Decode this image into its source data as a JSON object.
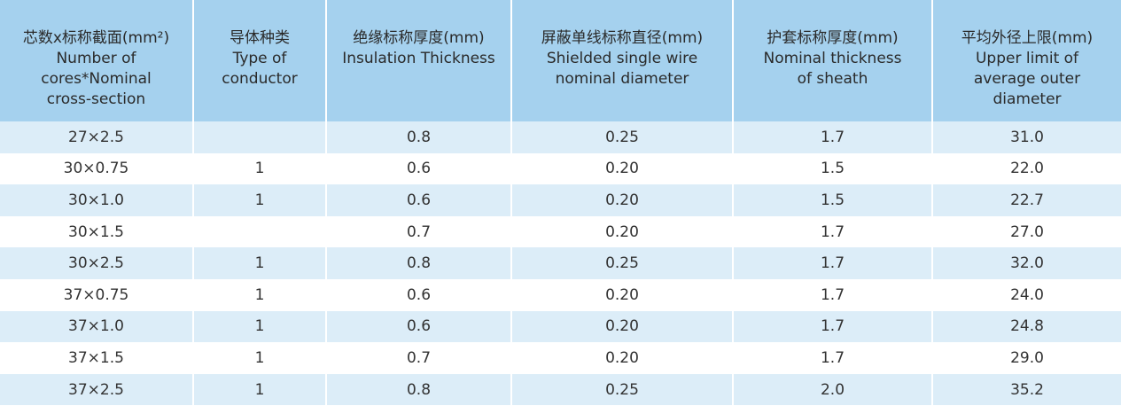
{
  "table": {
    "header": [
      [
        "芯数x标称截面(mm²)",
        "Number of",
        "cores*Nominal",
        "cross-section"
      ],
      [
        "导体种类",
        "Type of",
        "conductor"
      ],
      [
        "绝缘标称厚度(mm)",
        "Insulation Thickness"
      ],
      [
        "屏蔽单线标称直径(mm)",
        "Shielded single wire",
        "nominal diameter"
      ],
      [
        "护套标称厚度(mm)",
        "Nominal thickness",
        "of sheath"
      ],
      [
        "平均外径上限(mm)",
        "Upper limit of",
        "average outer",
        "diameter"
      ]
    ],
    "rows": [
      [
        "27×2.5",
        null,
        "0.8",
        "0.25",
        "1.7",
        "31.0"
      ],
      [
        "30×0.75",
        "1",
        "0.6",
        "0.20",
        "1.5",
        "22.0"
      ],
      [
        "30×1.0",
        "1",
        "0.6",
        "0.20",
        "1.5",
        "22.7"
      ],
      [
        "30×1.5",
        null,
        "0.7",
        "0.20",
        "1.7",
        "27.0"
      ],
      [
        "30×2.5",
        "1",
        "0.8",
        "0.25",
        "1.7",
        "32.0"
      ],
      [
        "37×0.75",
        "1",
        "0.6",
        "0.20",
        "1.7",
        "24.0"
      ],
      [
        "37×1.0",
        "1",
        "0.6",
        "0.20",
        "1.7",
        "24.8"
      ],
      [
        "37×1.5",
        "1",
        "0.7",
        "0.20",
        "1.7",
        "29.0"
      ],
      [
        "37×2.5",
        "1",
        "0.8",
        "0.25",
        "2.0",
        "35.2"
      ]
    ]
  }
}
